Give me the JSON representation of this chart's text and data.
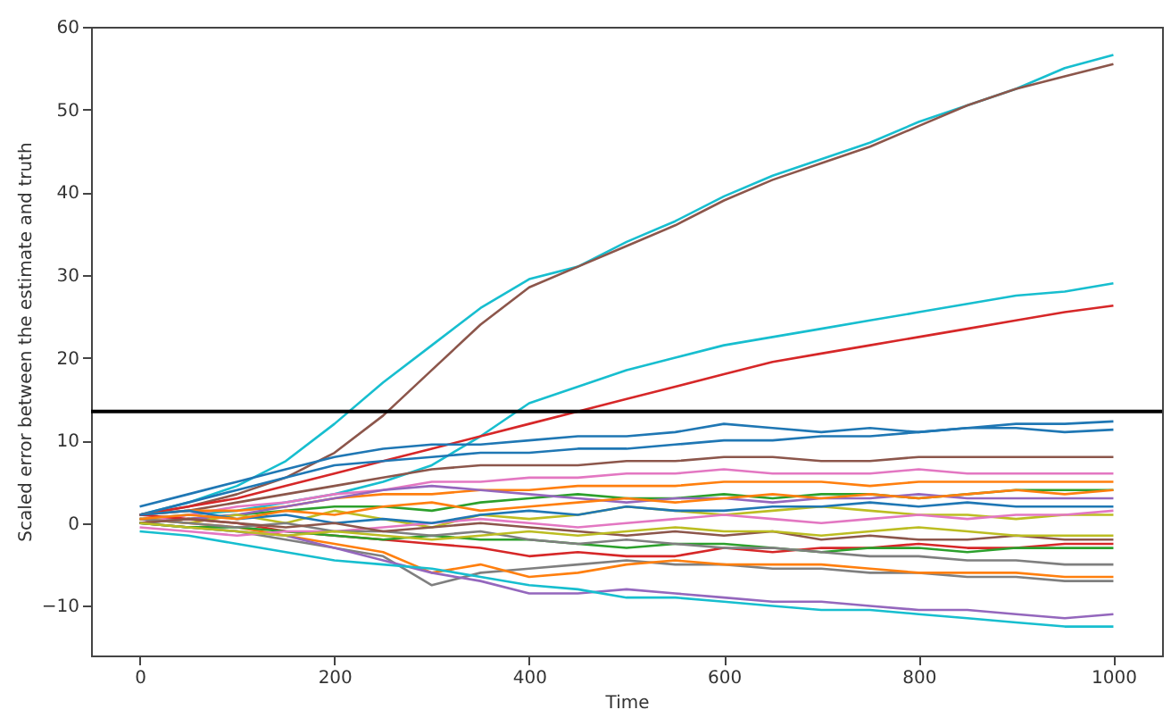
{
  "chart_data": {
    "type": "line",
    "xlabel": "Time",
    "ylabel": "Scaled error between the estimate and truth",
    "x": [
      0,
      50,
      100,
      150,
      200,
      250,
      300,
      350,
      400,
      450,
      500,
      550,
      600,
      650,
      700,
      750,
      800,
      850,
      900,
      950,
      1000
    ],
    "xlim": [
      -50,
      1050
    ],
    "xticks": [
      0,
      200,
      400,
      600,
      800,
      1000
    ],
    "ylim": [
      -16,
      60
    ],
    "yticks": [
      -10,
      0,
      10,
      20,
      30,
      40,
      50,
      60
    ],
    "ref_lines": [
      {
        "axis": "y",
        "value": 13.5,
        "color": "#000000"
      }
    ],
    "series": [
      {
        "color": "#17becf",
        "values": [
          1,
          2.5,
          4.5,
          7.5,
          12,
          17,
          21.5,
          26,
          29.5,
          31,
          34,
          36.5,
          39.5,
          42,
          44,
          46,
          48.5,
          50.5,
          52.5,
          55,
          56.6
        ]
      },
      {
        "color": "#8c564b",
        "values": [
          1,
          2,
          3.5,
          5.5,
          8.5,
          13,
          18.5,
          24,
          28.5,
          31,
          33.5,
          36,
          39,
          41.5,
          43.5,
          45.5,
          48,
          50.5,
          52.5,
          54,
          55.5
        ]
      },
      {
        "color": "#17becf",
        "values": [
          0.5,
          1,
          1.5,
          2.5,
          3.5,
          5,
          7,
          10.5,
          14.5,
          16.5,
          18.5,
          20,
          21.5,
          22.5,
          23.5,
          24.5,
          25.5,
          26.5,
          27.5,
          28,
          29
        ]
      },
      {
        "color": "#d62728",
        "values": [
          1,
          2,
          3,
          4.5,
          6,
          7.5,
          9,
          10.5,
          12,
          13.5,
          15,
          16.5,
          18,
          19.5,
          20.5,
          21.5,
          22.5,
          23.5,
          24.5,
          25.5,
          26.3
        ]
      },
      {
        "color": "#1f77b4",
        "values": [
          2,
          3.5,
          5,
          6.5,
          8,
          9,
          9.5,
          9.5,
          10,
          10.5,
          10.5,
          11,
          12,
          11.5,
          11,
          11.5,
          11,
          11.5,
          12,
          12,
          12.3
        ]
      },
      {
        "color": "#1f77b4",
        "values": [
          1,
          2.5,
          4,
          5.5,
          7,
          7.5,
          8,
          8.5,
          8.5,
          9,
          9,
          9.5,
          10,
          10,
          10.5,
          10.5,
          11,
          11.5,
          11.5,
          11,
          11.3
        ]
      },
      {
        "color": "#8c564b",
        "values": [
          1,
          1.5,
          2.5,
          3.5,
          4.5,
          5.5,
          6.5,
          7,
          7,
          7,
          7.5,
          7.5,
          8,
          8,
          7.5,
          7.5,
          8,
          8,
          8,
          8,
          8
        ]
      },
      {
        "color": "#e377c2",
        "values": [
          0,
          1,
          2,
          2.5,
          3.5,
          4,
          5,
          5,
          5.5,
          5.5,
          6,
          6,
          6.5,
          6,
          6,
          6,
          6.5,
          6,
          6,
          6,
          6
        ]
      },
      {
        "color": "#ff7f0e",
        "values": [
          1,
          1.5,
          1.5,
          2,
          3,
          3.5,
          3.5,
          4,
          4,
          4.5,
          4.5,
          4.5,
          5,
          5,
          5,
          4.5,
          5,
          5,
          5,
          5,
          5
        ]
      },
      {
        "color": "#2ca02c",
        "values": [
          0,
          0.5,
          1,
          1.5,
          2,
          2,
          1.5,
          2.5,
          3,
          3.5,
          3,
          3,
          3.5,
          3,
          3.5,
          3.5,
          3,
          3.5,
          4,
          4,
          4
        ]
      },
      {
        "color": "#9467bd",
        "values": [
          0,
          0.5,
          1,
          2,
          3,
          4,
          4.5,
          4,
          3.5,
          3,
          2.5,
          3,
          3,
          2.5,
          3,
          3,
          3.5,
          3,
          3,
          3,
          3
        ]
      },
      {
        "color": "#bcbd22",
        "values": [
          0.5,
          0,
          1,
          0,
          1.5,
          0.5,
          -0.5,
          1,
          0.5,
          1,
          2,
          1.5,
          1,
          1.5,
          2,
          1.5,
          1,
          1,
          0.5,
          1,
          1
        ]
      },
      {
        "color": "#7f7f7f",
        "values": [
          0,
          -0.5,
          -1,
          -2,
          -3,
          -4,
          -7.5,
          -6,
          -5.5,
          -5,
          -4.5,
          -5,
          -5,
          -5.5,
          -5.5,
          -6,
          -6,
          -6.5,
          -6.5,
          -7,
          -7
        ]
      },
      {
        "color": "#ff7f0e",
        "values": [
          0.5,
          0,
          -0.5,
          -1.5,
          -2.5,
          -3.5,
          -6,
          -5,
          -6.5,
          -6,
          -5,
          -4.5,
          -5,
          -5,
          -5,
          -5.5,
          -6,
          -6,
          -6,
          -6.5,
          -6.5
        ]
      },
      {
        "color": "#9467bd",
        "values": [
          0,
          -0.5,
          -1,
          -1.5,
          -3,
          -4.5,
          -6,
          -7,
          -8.5,
          -8.5,
          -8,
          -8.5,
          -9,
          -9.5,
          -9.5,
          -10,
          -10.5,
          -10.5,
          -11,
          -11.5,
          -11
        ]
      },
      {
        "color": "#17becf",
        "values": [
          -1,
          -1.5,
          -2.5,
          -3.5,
          -4.5,
          -5,
          -5.5,
          -6.5,
          -7.5,
          -8,
          -9,
          -9,
          -9.5,
          -10,
          -10.5,
          -10.5,
          -11,
          -11.5,
          -12,
          -12.5,
          -12.5
        ]
      },
      {
        "color": "#d62728",
        "values": [
          1,
          0.5,
          0,
          -1,
          -1.5,
          -2,
          -2.5,
          -3,
          -4,
          -3.5,
          -4,
          -4,
          -3,
          -3.5,
          -3,
          -3,
          -2.5,
          -3,
          -3,
          -2.5,
          -2.5
        ]
      },
      {
        "color": "#2ca02c",
        "values": [
          0,
          -0.5,
          -0.5,
          -1,
          -1.5,
          -2,
          -1.5,
          -2,
          -2,
          -2.5,
          -3,
          -2.5,
          -2.5,
          -3,
          -3.5,
          -3,
          -3,
          -3.5,
          -3,
          -3,
          -3
        ]
      },
      {
        "color": "#e377c2",
        "values": [
          -0.5,
          -1,
          -1.5,
          -1,
          -1,
          -0.5,
          0,
          0.5,
          0,
          -0.5,
          0,
          0.5,
          1,
          0.5,
          0,
          0.5,
          1,
          0.5,
          1,
          1,
          1.5
        ]
      },
      {
        "color": "#1f77b4",
        "values": [
          1,
          1.5,
          0.5,
          1,
          0,
          0.5,
          0,
          1,
          1.5,
          1,
          2,
          1.5,
          1.5,
          2,
          2,
          2.5,
          2,
          2.5,
          2,
          2,
          2
        ]
      },
      {
        "color": "#7f7f7f",
        "values": [
          0.5,
          0,
          -0.5,
          0,
          -1,
          -1,
          -1.5,
          -1,
          -2,
          -2.5,
          -2,
          -2.5,
          -3,
          -3,
          -3.5,
          -4,
          -4,
          -4.5,
          -4.5,
          -5,
          -5
        ]
      },
      {
        "color": "#8c564b",
        "values": [
          0,
          0.5,
          0,
          -0.5,
          0,
          -1,
          -0.5,
          0,
          -0.5,
          -1,
          -1.5,
          -1,
          -1.5,
          -1,
          -2,
          -1.5,
          -2,
          -2,
          -1.5,
          -2,
          -2
        ]
      },
      {
        "color": "#bcbd22",
        "values": [
          0,
          -0.5,
          -1,
          -1.5,
          -1,
          -1.5,
          -2,
          -1.5,
          -1,
          -1.5,
          -1,
          -0.5,
          -1,
          -1,
          -1.5,
          -1,
          -0.5,
          -1,
          -1.5,
          -1.5,
          -1.5
        ]
      },
      {
        "color": "#ff7f0e",
        "values": [
          0.5,
          1,
          0.5,
          1.5,
          1,
          2,
          2.5,
          1.5,
          2,
          2.5,
          3,
          2.5,
          3,
          3.5,
          3,
          3.5,
          3,
          3.5,
          4,
          3.5,
          4
        ]
      }
    ]
  }
}
